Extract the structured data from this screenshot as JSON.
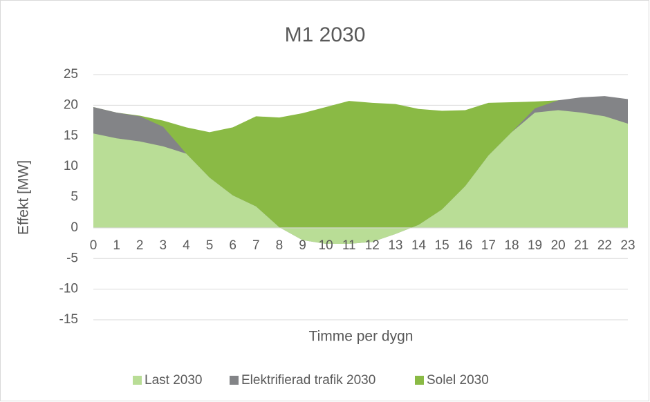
{
  "chart_data": {
    "type": "area",
    "title": "M1 2030",
    "x_label": "Timme per dygn",
    "y_label": "Effekt [MW]",
    "x": [
      0,
      1,
      2,
      3,
      4,
      5,
      6,
      7,
      8,
      9,
      10,
      11,
      12,
      13,
      14,
      15,
      16,
      17,
      18,
      19,
      20,
      21,
      22,
      23
    ],
    "xlim": [
      0,
      23
    ],
    "ylim": [
      -15,
      25
    ],
    "yticks": [
      -15,
      -10,
      -5,
      0,
      5,
      10,
      15,
      20,
      25
    ],
    "grid": true,
    "legend": "bottom",
    "series": [
      {
        "name": "Last 2030",
        "color": "#b9dd96",
        "values": [
          15.4,
          14.6,
          14.1,
          13.3,
          12.1,
          8.2,
          5.3,
          3.5,
          0.1,
          -2.0,
          -2.6,
          -2.6,
          -2.3,
          -1.0,
          0.5,
          3.0,
          6.8,
          11.8,
          15.6,
          18.8,
          19.2,
          18.8,
          18.2,
          17.0
        ]
      },
      {
        "name": "Elektrifierad trafik 2030",
        "color": "#838487",
        "values": [
          19.7,
          18.8,
          18.2,
          16.5,
          12.1,
          8.2,
          5.3,
          3.5,
          0.1,
          -2.0,
          -2.6,
          -2.6,
          -2.3,
          -1.0,
          0.5,
          3.0,
          6.8,
          11.8,
          15.6,
          19.5,
          20.8,
          21.3,
          21.5,
          21.0
        ]
      },
      {
        "name": "Solel 2030",
        "color": "#8aba45",
        "values": [
          19.7,
          18.8,
          18.3,
          17.5,
          16.4,
          15.6,
          16.4,
          18.2,
          18.0,
          18.7,
          19.7,
          20.7,
          20.4,
          20.2,
          19.4,
          19.1,
          19.2,
          20.4,
          20.5,
          20.6,
          20.8,
          20.5,
          20.5,
          20.5
        ]
      }
    ]
  }
}
